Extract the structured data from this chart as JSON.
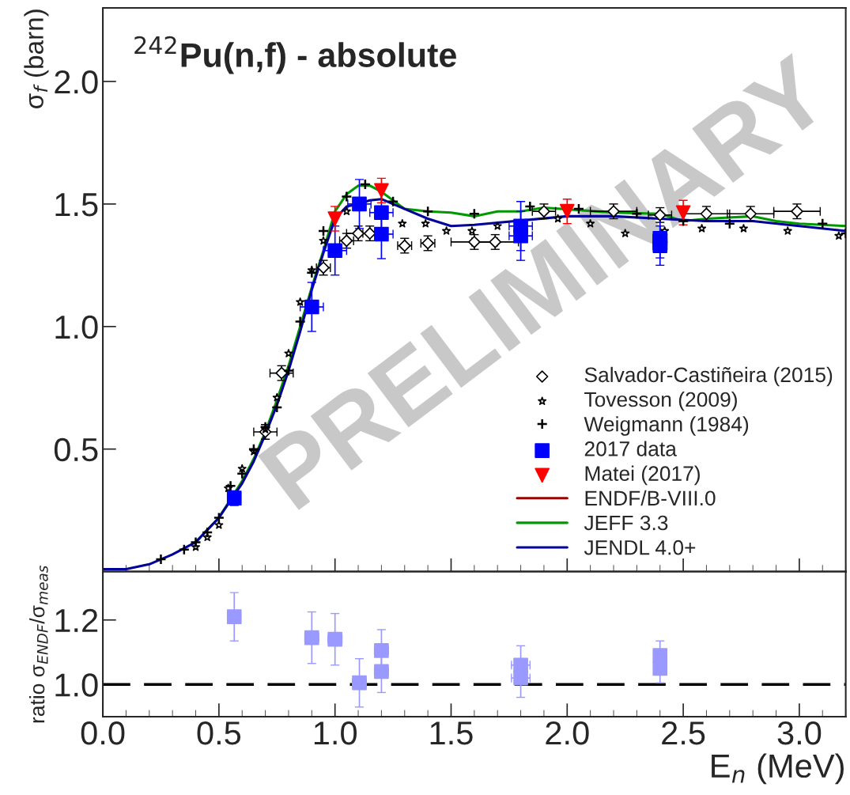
{
  "chart_data": [
    {
      "type": "scatter",
      "title": "$^{242}$Pu(n,f) - absolute",
      "ylabel": "σ$_{f}$ (barn)",
      "xlim": [
        0,
        3.2
      ],
      "ylim": [
        0,
        2.3
      ],
      "xticks": [
        {
          "value": 0,
          "label": null
        },
        {
          "value": 0.5,
          "label": null
        },
        {
          "value": 1.0,
          "label": null
        },
        {
          "value": 1.5,
          "label": null
        },
        {
          "value": 2.0,
          "label": null
        },
        {
          "value": 2.5,
          "label": null
        },
        {
          "value": 3.0,
          "label": null
        }
      ],
      "yticks": [
        {
          "value": 0.5,
          "label": "0.5"
        },
        {
          "value": 1.0,
          "label": "1.0"
        },
        {
          "value": 1.5,
          "label": "1.5"
        },
        {
          "value": 2.0,
          "label": "2.0"
        }
      ],
      "tick_labels": "y",
      "legend": "bottom right",
      "annotations": [
        "PRELIMINARY"
      ],
      "series": [
        {
          "name": "ENDF/B-VIII.0",
          "type": "line",
          "color": "#990000",
          "marker": "none"
        },
        {
          "name": "JEFF 3.3",
          "type": "line",
          "color": "#009900",
          "marker": "none",
          "x": [
            0.4,
            0.5,
            0.6,
            0.65,
            0.7,
            0.75,
            0.8,
            0.85,
            0.9,
            0.95,
            1.0,
            1.05,
            1.1,
            1.15,
            1.2,
            1.3,
            1.4,
            1.5,
            1.6,
            1.7,
            1.8,
            1.9,
            2.2,
            2.4,
            2.5,
            2.6,
            2.8,
            2.9,
            3.0,
            3.2
          ],
          "values": [
            0.12,
            0.22,
            0.37,
            0.46,
            0.57,
            0.7,
            0.84,
            1.0,
            1.16,
            1.31,
            1.47,
            1.54,
            1.575,
            1.575,
            1.55,
            1.48,
            1.47,
            1.465,
            1.45,
            1.47,
            1.47,
            1.485,
            1.465,
            1.46,
            1.43,
            1.44,
            1.45,
            1.43,
            1.42,
            1.41
          ]
        },
        {
          "name": "JENDL 4.0+",
          "type": "line",
          "color": "#000099",
          "marker": "none",
          "x": [
            0,
            0.1,
            0.2,
            0.3,
            0.4,
            0.5,
            0.6,
            0.65,
            0.7,
            0.75,
            0.8,
            0.85,
            0.9,
            0.95,
            1.0,
            1.05,
            1.1,
            1.15,
            1.2,
            1.3,
            1.4,
            1.5,
            1.6,
            2.0,
            2.2,
            2.4,
            2.6,
            2.8,
            3.0,
            3.2
          ],
          "values": [
            0.01,
            0.01,
            0.03,
            0.07,
            0.12,
            0.22,
            0.36,
            0.45,
            0.56,
            0.68,
            0.82,
            0.98,
            1.15,
            1.3,
            1.44,
            1.49,
            1.5,
            1.515,
            1.52,
            1.48,
            1.44,
            1.41,
            1.415,
            1.45,
            1.45,
            1.44,
            1.43,
            1.43,
            1.41,
            1.39
          ]
        },
        {
          "name": "Salvador-Castiñeira (2015)",
          "color": "#000000",
          "marker": "diamond",
          "x": [
            0.7,
            0.77,
            0.95,
            1.05,
            1.1,
            1.15,
            1.3,
            1.4,
            1.6,
            1.69,
            1.9,
            2.2,
            2.4,
            2.6,
            2.79,
            2.99
          ],
          "values": [
            0.57,
            0.81,
            1.24,
            1.35,
            1.38,
            1.38,
            1.33,
            1.34,
            1.345,
            1.345,
            1.47,
            1.47,
            1.455,
            1.46,
            1.46,
            1.47
          ],
          "errors": [
            0.03,
            0.03,
            0.03,
            0.03,
            0.03,
            0.03,
            0.03,
            0.03,
            0.03,
            0.03,
            0.03,
            0.03,
            0.03,
            0.03,
            0.03,
            0.03
          ],
          "xerrors": [
            0.05,
            0.05,
            0.03,
            0.03,
            0.05,
            0.03,
            0.03,
            0.03,
            0.1,
            0.1,
            0.05,
            0.1,
            0.05,
            0.1,
            0.1,
            0.1
          ]
        },
        {
          "name": "Tovesson (2009)",
          "color": "#000000",
          "marker": "star",
          "x": [
            0.4,
            0.45,
            0.5,
            0.54,
            0.6,
            0.65,
            0.7,
            0.75,
            0.8,
            0.85,
            0.9,
            0.95,
            1.05,
            1.29,
            1.39,
            1.48,
            1.59,
            1.7,
            1.96,
            2.1,
            2.25,
            2.42,
            2.58,
            2.76,
            2.95,
            3.17
          ],
          "values": [
            0.1,
            0.14,
            0.19,
            0.34,
            0.42,
            0.49,
            0.58,
            0.71,
            0.89,
            1.1,
            1.23,
            1.35,
            1.47,
            1.42,
            1.42,
            1.39,
            1.39,
            1.41,
            1.44,
            1.42,
            1.38,
            1.39,
            1.4,
            1.4,
            1.39,
            1.37
          ]
        },
        {
          "name": "Weigmann (1984)",
          "color": "#000000",
          "marker": "cross",
          "x": [
            0.25,
            0.35,
            0.4,
            0.45,
            0.5,
            0.55,
            0.6,
            0.65,
            0.7,
            0.75,
            0.8,
            0.85,
            0.9,
            0.95,
            1.05,
            1.13,
            1.25,
            1.4,
            1.6,
            1.84,
            2.05,
            2.3,
            2.5,
            2.7,
            3.1,
            3.2
          ],
          "values": [
            0.05,
            0.09,
            0.12,
            0.16,
            0.22,
            0.35,
            0.4,
            0.5,
            0.59,
            0.67,
            0.82,
            1.02,
            1.22,
            1.39,
            1.53,
            1.58,
            1.51,
            1.47,
            1.46,
            1.49,
            1.48,
            1.46,
            1.43,
            1.42,
            1.42,
            1.38
          ]
        },
        {
          "name": "2017 data",
          "color": "#0000ff",
          "marker": "square",
          "x": [
            0.566,
            0.9,
            1.0,
            1.105,
            1.2,
            1.2,
            1.8,
            1.8,
            2.4,
            2.4
          ],
          "values": [
            0.3,
            1.08,
            1.31,
            1.5,
            1.465,
            1.377,
            1.41,
            1.37,
            1.36,
            1.33
          ],
          "errors": [
            0.03,
            0.1,
            0.1,
            0.1,
            0.1,
            0.1,
            0.1,
            0.1,
            0.08,
            0.08
          ],
          "xerrors": [
            0.02,
            0.05,
            0.05,
            0.05,
            0.05,
            0.05,
            0.05,
            0.05,
            0.03,
            0.03
          ]
        },
        {
          "name": "Matei (2017)",
          "color": "#ff0000",
          "marker": "triangle",
          "x": [
            1.0,
            1.2,
            2.0,
            2.5
          ],
          "values": [
            1.44,
            1.555,
            1.47,
            1.465
          ],
          "errors": [
            0.05,
            0.05,
            0.05,
            0.05
          ]
        }
      ]
    },
    {
      "type": "scatter",
      "ylabel": "ratio σ$_{ENDF}$/σ$_{meas}$",
      "xlabel": "E$_{n}$ (MeV)",
      "xlim": [
        0,
        3.2
      ],
      "ylim": [
        0.9,
        1.35
      ],
      "xticks": [
        {
          "value": 0,
          "label": "0.0"
        },
        {
          "value": 0.5,
          "label": "0.5"
        },
        {
          "value": 1.0,
          "label": "1.0"
        },
        {
          "value": 1.5,
          "label": "1.5"
        },
        {
          "value": 2.0,
          "label": "2.0"
        },
        {
          "value": 2.5,
          "label": "2.5"
        },
        {
          "value": 3.0,
          "label": "3.0"
        }
      ],
      "yticks": [
        {
          "value": 1.0,
          "label": "1.0"
        },
        {
          "value": 1.2,
          "label": "1.2"
        }
      ],
      "ref_lines": [
        {
          "axis": "y",
          "value": 1.0,
          "color": "#000000",
          "line_style": "dashed"
        }
      ],
      "series": [
        {
          "color": "#9999ff",
          "marker": "square",
          "x": [
            0.566,
            0.9,
            1.0,
            1.105,
            1.2,
            1.2,
            1.8,
            1.8,
            2.4,
            2.4
          ],
          "values": [
            1.21,
            1.145,
            1.14,
            1.005,
            1.105,
            1.04,
            1.06,
            1.02,
            1.09,
            1.05
          ],
          "errors": [
            0.075,
            0.08,
            0.08,
            0.075,
            0.065,
            0.065,
            0.06,
            0.06,
            0.045,
            0.045
          ],
          "xerrors": [
            null,
            0.03,
            0.03,
            0.03,
            0.03,
            0.03,
            0.04,
            0.04,
            0.02,
            0.02
          ]
        }
      ]
    }
  ]
}
